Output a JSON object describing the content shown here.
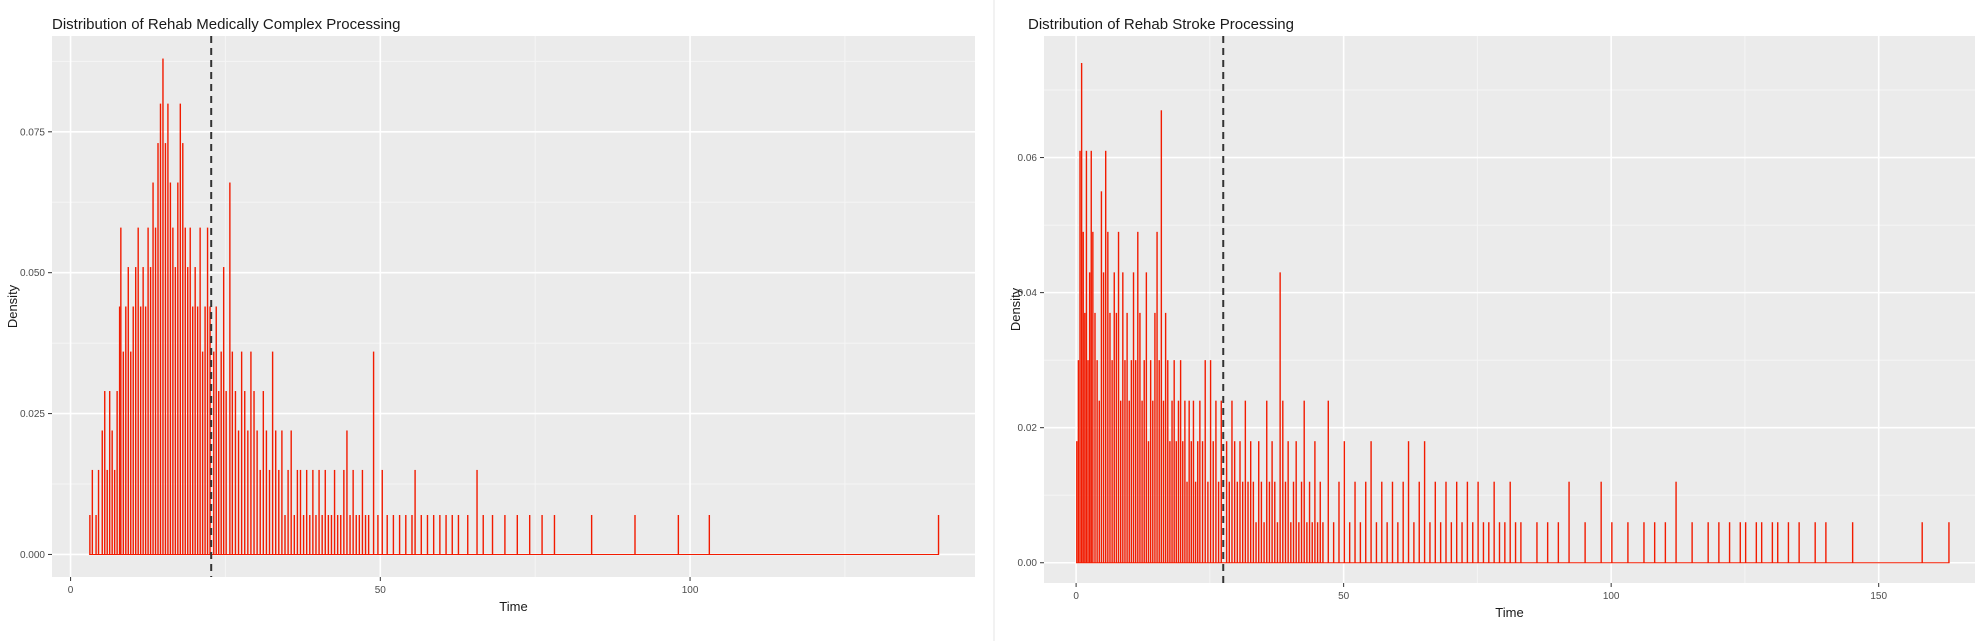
{
  "chart_data": [
    {
      "type": "histogram",
      "title": "Distribution of Rehab Medically Complex Processing",
      "xlabel": "Time",
      "ylabel": "Density",
      "x_ticks": [
        "0",
        "50",
        "100"
      ],
      "y_ticks": [
        "0.000",
        "0.025",
        "0.050",
        "0.075"
      ],
      "xlim": [
        -3,
        146
      ],
      "ylim": [
        -0.004,
        0.092
      ],
      "mean_line_x": 22.7,
      "bar_color": "#f21b00",
      "bin_width": 0.2,
      "peaks": [
        [
          3.0,
          0.007
        ],
        [
          3.4,
          0.015
        ],
        [
          4.0,
          0.007
        ],
        [
          4.4,
          0.015
        ],
        [
          5.0,
          0.022
        ],
        [
          5.4,
          0.029
        ],
        [
          5.8,
          0.015
        ],
        [
          6.2,
          0.029
        ],
        [
          6.6,
          0.022
        ],
        [
          7.0,
          0.015
        ],
        [
          7.4,
          0.029
        ],
        [
          7.8,
          0.044
        ],
        [
          8.0,
          0.058
        ],
        [
          8.4,
          0.036
        ],
        [
          8.8,
          0.044
        ],
        [
          9.2,
          0.051
        ],
        [
          9.6,
          0.036
        ],
        [
          10.0,
          0.044
        ],
        [
          10.4,
          0.051
        ],
        [
          10.8,
          0.058
        ],
        [
          11.2,
          0.044
        ],
        [
          11.6,
          0.051
        ],
        [
          12.0,
          0.044
        ],
        [
          12.4,
          0.058
        ],
        [
          12.8,
          0.051
        ],
        [
          13.2,
          0.066
        ],
        [
          13.6,
          0.058
        ],
        [
          14.0,
          0.073
        ],
        [
          14.4,
          0.08
        ],
        [
          14.8,
          0.088
        ],
        [
          15.2,
          0.073
        ],
        [
          15.6,
          0.08
        ],
        [
          16.0,
          0.066
        ],
        [
          16.4,
          0.058
        ],
        [
          16.8,
          0.051
        ],
        [
          17.2,
          0.066
        ],
        [
          17.6,
          0.08
        ],
        [
          18.0,
          0.073
        ],
        [
          18.4,
          0.058
        ],
        [
          18.8,
          0.051
        ],
        [
          19.2,
          0.058
        ],
        [
          19.6,
          0.044
        ],
        [
          20.0,
          0.051
        ],
        [
          20.4,
          0.044
        ],
        [
          20.8,
          0.058
        ],
        [
          21.2,
          0.036
        ],
        [
          21.6,
          0.044
        ],
        [
          22.0,
          0.058
        ],
        [
          22.4,
          0.044
        ],
        [
          23.0,
          0.036
        ],
        [
          23.4,
          0.044
        ],
        [
          23.8,
          0.029
        ],
        [
          24.2,
          0.036
        ],
        [
          24.6,
          0.051
        ],
        [
          25.0,
          0.029
        ],
        [
          25.6,
          0.066
        ],
        [
          26.0,
          0.036
        ],
        [
          26.5,
          0.029
        ],
        [
          27.0,
          0.022
        ],
        [
          27.5,
          0.036
        ],
        [
          28.0,
          0.029
        ],
        [
          28.5,
          0.022
        ],
        [
          29.0,
          0.036
        ],
        [
          29.5,
          0.029
        ],
        [
          30.0,
          0.022
        ],
        [
          30.5,
          0.015
        ],
        [
          31.0,
          0.029
        ],
        [
          31.5,
          0.022
        ],
        [
          32.0,
          0.015
        ],
        [
          32.5,
          0.036
        ],
        [
          33.0,
          0.022
        ],
        [
          33.5,
          0.015
        ],
        [
          34.0,
          0.022
        ],
        [
          34.5,
          0.007
        ],
        [
          35.0,
          0.015
        ],
        [
          35.5,
          0.022
        ],
        [
          36.0,
          0.007
        ],
        [
          36.5,
          0.015
        ],
        [
          37.0,
          0.015
        ],
        [
          37.5,
          0.007
        ],
        [
          38.0,
          0.015
        ],
        [
          38.5,
          0.007
        ],
        [
          39.0,
          0.015
        ],
        [
          39.5,
          0.007
        ],
        [
          40.0,
          0.015
        ],
        [
          40.5,
          0.007
        ],
        [
          41.0,
          0.015
        ],
        [
          41.5,
          0.007
        ],
        [
          42.0,
          0.007
        ],
        [
          42.5,
          0.015
        ],
        [
          43.0,
          0.007
        ],
        [
          43.5,
          0.007
        ],
        [
          44.0,
          0.015
        ],
        [
          44.5,
          0.022
        ],
        [
          45.0,
          0.007
        ],
        [
          45.5,
          0.015
        ],
        [
          46.0,
          0.007
        ],
        [
          46.5,
          0.007
        ],
        [
          47.0,
          0.015
        ],
        [
          47.5,
          0.007
        ],
        [
          48.0,
          0.007
        ],
        [
          48.8,
          0.036
        ],
        [
          49.5,
          0.007
        ],
        [
          50.2,
          0.015
        ],
        [
          51.0,
          0.007
        ],
        [
          52.0,
          0.007
        ],
        [
          53.0,
          0.007
        ],
        [
          54.0,
          0.007
        ],
        [
          55.0,
          0.007
        ],
        [
          55.5,
          0.015
        ],
        [
          56.5,
          0.007
        ],
        [
          57.5,
          0.007
        ],
        [
          58.5,
          0.007
        ],
        [
          59.5,
          0.007
        ],
        [
          60.5,
          0.007
        ],
        [
          61.5,
          0.007
        ],
        [
          62.5,
          0.007
        ],
        [
          64.0,
          0.007
        ],
        [
          65.5,
          0.015
        ],
        [
          66.5,
          0.007
        ],
        [
          68.0,
          0.007
        ],
        [
          70.0,
          0.007
        ],
        [
          72.0,
          0.007
        ],
        [
          74.0,
          0.007
        ],
        [
          76.0,
          0.007
        ],
        [
          78.0,
          0.007
        ],
        [
          84.0,
          0.007
        ],
        [
          91.0,
          0.007
        ],
        [
          98.0,
          0.007
        ],
        [
          103.0,
          0.007
        ],
        [
          140.0,
          0.007
        ]
      ]
    },
    {
      "type": "histogram",
      "title": "Distribution of Rehab Stroke Processing",
      "xlabel": "Time",
      "ylabel": "Density",
      "x_ticks": [
        "0",
        "50",
        "100",
        "150"
      ],
      "y_ticks": [
        "0.00",
        "0.02",
        "0.04",
        "0.06"
      ],
      "xlim": [
        -6,
        168
      ],
      "ylim": [
        -0.003,
        0.078
      ],
      "mean_line_x": 27.5,
      "bar_color": "#f21b00",
      "bin_width": 0.25,
      "peaks": [
        [
          0.0,
          0.018
        ],
        [
          0.3,
          0.03
        ],
        [
          0.6,
          0.061
        ],
        [
          0.9,
          0.074
        ],
        [
          1.2,
          0.049
        ],
        [
          1.5,
          0.037
        ],
        [
          1.8,
          0.061
        ],
        [
          2.1,
          0.03
        ],
        [
          2.4,
          0.043
        ],
        [
          2.7,
          0.061
        ],
        [
          3.0,
          0.049
        ],
        [
          3.4,
          0.037
        ],
        [
          3.8,
          0.03
        ],
        [
          4.2,
          0.024
        ],
        [
          4.6,
          0.055
        ],
        [
          5.0,
          0.043
        ],
        [
          5.4,
          0.061
        ],
        [
          5.8,
          0.049
        ],
        [
          6.2,
          0.037
        ],
        [
          6.6,
          0.03
        ],
        [
          7.0,
          0.043
        ],
        [
          7.4,
          0.037
        ],
        [
          7.8,
          0.049
        ],
        [
          8.2,
          0.024
        ],
        [
          8.6,
          0.043
        ],
        [
          9.0,
          0.03
        ],
        [
          9.4,
          0.037
        ],
        [
          9.8,
          0.024
        ],
        [
          10.2,
          0.03
        ],
        [
          10.6,
          0.043
        ],
        [
          11.0,
          0.03
        ],
        [
          11.4,
          0.049
        ],
        [
          11.8,
          0.037
        ],
        [
          12.2,
          0.024
        ],
        [
          12.6,
          0.03
        ],
        [
          13.0,
          0.043
        ],
        [
          13.4,
          0.018
        ],
        [
          13.8,
          0.03
        ],
        [
          14.2,
          0.024
        ],
        [
          14.6,
          0.037
        ],
        [
          15.0,
          0.049
        ],
        [
          15.4,
          0.03
        ],
        [
          15.8,
          0.067
        ],
        [
          16.2,
          0.024
        ],
        [
          16.6,
          0.037
        ],
        [
          17.0,
          0.03
        ],
        [
          17.4,
          0.018
        ],
        [
          17.8,
          0.024
        ],
        [
          18.2,
          0.03
        ],
        [
          18.6,
          0.018
        ],
        [
          19.0,
          0.024
        ],
        [
          19.4,
          0.03
        ],
        [
          19.8,
          0.018
        ],
        [
          20.2,
          0.024
        ],
        [
          20.6,
          0.012
        ],
        [
          21.0,
          0.024
        ],
        [
          21.4,
          0.018
        ],
        [
          21.8,
          0.024
        ],
        [
          22.2,
          0.012
        ],
        [
          22.6,
          0.018
        ],
        [
          23.0,
          0.024
        ],
        [
          23.5,
          0.018
        ],
        [
          24.0,
          0.03
        ],
        [
          24.5,
          0.012
        ],
        [
          25.0,
          0.03
        ],
        [
          25.5,
          0.018
        ],
        [
          26.0,
          0.024
        ],
        [
          26.5,
          0.012
        ],
        [
          27.0,
          0.024
        ],
        [
          28.0,
          0.018
        ],
        [
          28.5,
          0.012
        ],
        [
          29.0,
          0.024
        ],
        [
          29.5,
          0.018
        ],
        [
          30.0,
          0.012
        ],
        [
          30.5,
          0.018
        ],
        [
          31.0,
          0.012
        ],
        [
          31.5,
          0.024
        ],
        [
          32.0,
          0.012
        ],
        [
          32.5,
          0.018
        ],
        [
          33.0,
          0.012
        ],
        [
          33.5,
          0.006
        ],
        [
          34.0,
          0.018
        ],
        [
          34.5,
          0.012
        ],
        [
          35.0,
          0.006
        ],
        [
          35.5,
          0.024
        ],
        [
          36.0,
          0.012
        ],
        [
          36.5,
          0.018
        ],
        [
          37.0,
          0.012
        ],
        [
          37.5,
          0.006
        ],
        [
          38.0,
          0.043
        ],
        [
          38.5,
          0.024
        ],
        [
          39.0,
          0.012
        ],
        [
          39.5,
          0.018
        ],
        [
          40.0,
          0.006
        ],
        [
          40.5,
          0.012
        ],
        [
          41.0,
          0.018
        ],
        [
          41.5,
          0.006
        ],
        [
          42.0,
          0.012
        ],
        [
          42.5,
          0.024
        ],
        [
          43.0,
          0.006
        ],
        [
          43.5,
          0.012
        ],
        [
          44.0,
          0.006
        ],
        [
          44.5,
          0.018
        ],
        [
          45.0,
          0.006
        ],
        [
          45.5,
          0.012
        ],
        [
          46.0,
          0.006
        ],
        [
          47.0,
          0.024
        ],
        [
          48.0,
          0.006
        ],
        [
          49.0,
          0.012
        ],
        [
          50.0,
          0.018
        ],
        [
          51.0,
          0.006
        ],
        [
          52.0,
          0.012
        ],
        [
          53.0,
          0.006
        ],
        [
          54.0,
          0.012
        ],
        [
          55.0,
          0.018
        ],
        [
          56.0,
          0.006
        ],
        [
          57.0,
          0.012
        ],
        [
          58.0,
          0.006
        ],
        [
          59.0,
          0.012
        ],
        [
          60.0,
          0.006
        ],
        [
          61.0,
          0.012
        ],
        [
          62.0,
          0.018
        ],
        [
          63.0,
          0.006
        ],
        [
          64.0,
          0.012
        ],
        [
          65.0,
          0.018
        ],
        [
          66.0,
          0.006
        ],
        [
          67.0,
          0.012
        ],
        [
          68.0,
          0.006
        ],
        [
          69.0,
          0.012
        ],
        [
          70.0,
          0.006
        ],
        [
          71.0,
          0.012
        ],
        [
          72.0,
          0.006
        ],
        [
          73.0,
          0.012
        ],
        [
          74.0,
          0.006
        ],
        [
          75.0,
          0.012
        ],
        [
          76.0,
          0.006
        ],
        [
          77.0,
          0.006
        ],
        [
          78.0,
          0.012
        ],
        [
          79.0,
          0.006
        ],
        [
          80.0,
          0.006
        ],
        [
          81.0,
          0.012
        ],
        [
          82.0,
          0.006
        ],
        [
          83.0,
          0.006
        ],
        [
          86.0,
          0.006
        ],
        [
          88.0,
          0.006
        ],
        [
          90.0,
          0.006
        ],
        [
          92.0,
          0.012
        ],
        [
          95.0,
          0.006
        ],
        [
          98.0,
          0.012
        ],
        [
          100.0,
          0.006
        ],
        [
          103.0,
          0.006
        ],
        [
          106.0,
          0.006
        ],
        [
          108.0,
          0.006
        ],
        [
          110.0,
          0.006
        ],
        [
          112.0,
          0.012
        ],
        [
          115.0,
          0.006
        ],
        [
          118.0,
          0.006
        ],
        [
          120.0,
          0.006
        ],
        [
          122.0,
          0.006
        ],
        [
          124.0,
          0.006
        ],
        [
          125.0,
          0.006
        ],
        [
          127.0,
          0.006
        ],
        [
          128.0,
          0.006
        ],
        [
          130.0,
          0.006
        ],
        [
          131.0,
          0.006
        ],
        [
          133.0,
          0.006
        ],
        [
          135.0,
          0.006
        ],
        [
          138.0,
          0.006
        ],
        [
          140.0,
          0.006
        ],
        [
          145.0,
          0.006
        ],
        [
          158.0,
          0.006
        ],
        [
          163.0,
          0.006
        ]
      ]
    }
  ]
}
